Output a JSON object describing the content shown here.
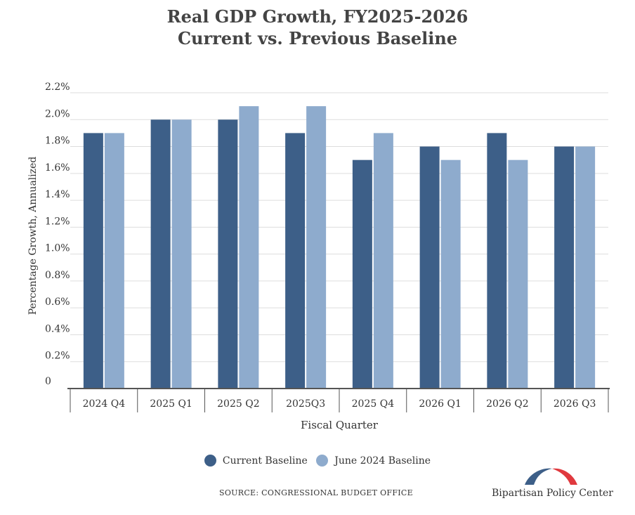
{
  "chart_data": {
    "type": "bar",
    "title": "Real GDP Growth, FY2025-2026",
    "subtitle": "Current vs. Previous Baseline",
    "xlabel": "Fiscal Quarter",
    "ylabel": "Percentage Growth, Annualized",
    "categories": [
      "2024 Q4",
      "2025 Q1",
      "2025 Q2",
      "2025Q3",
      "2025 Q4",
      "2026 Q1",
      "2026 Q2",
      "2026 Q3"
    ],
    "series": [
      {
        "name": "Current Baseline",
        "color": "#3d5f88",
        "values": [
          1.9,
          2.0,
          2.0,
          1.9,
          1.7,
          1.8,
          1.9,
          1.8
        ]
      },
      {
        "name": "June 2024 Baseline",
        "color": "#8eabcd",
        "values": [
          1.9,
          2.0,
          2.1,
          2.1,
          1.9,
          1.7,
          1.7,
          1.8
        ]
      }
    ],
    "ylim": [
      0,
      2.2
    ],
    "yticks": [
      0,
      0.2,
      0.4,
      0.6,
      0.8,
      1.0,
      1.2,
      1.4,
      1.6,
      1.8,
      2.0,
      2.2
    ],
    "ytick_labels": [
      "0",
      "0.2%",
      "0.4%",
      "0.6%",
      "0.8%",
      "1.0%",
      "1.2%",
      "1.4%",
      "1.6%",
      "1.8%",
      "2.0%",
      "2.2%"
    ],
    "grid": true,
    "legend_position": "bottom"
  },
  "source": "SOURCE: CONGRESSIONAL BUDGET OFFICE",
  "logo_text": "Bipartisan Policy Center",
  "colors": {
    "logo_blue": "#3d5f88",
    "logo_red": "#e0393e",
    "grid": "#dddddd",
    "axis": "#555555"
  }
}
